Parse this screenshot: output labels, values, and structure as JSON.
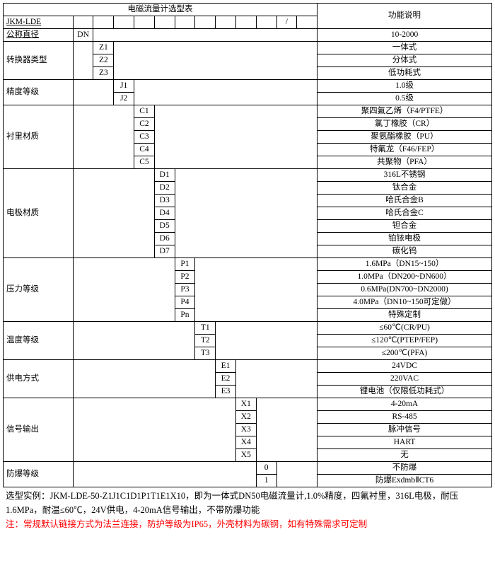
{
  "title": "电磁流量计选型表",
  "func_header": "功能说明",
  "model_label": "JKM-LDE",
  "slash": "/",
  "params": [
    {
      "label": "公称直径",
      "codes": [
        "DN"
      ],
      "indent": 0,
      "descs": [
        "10-2000"
      ]
    },
    {
      "label": "转换器类型",
      "codes": [
        "Z1",
        "Z2",
        "Z3"
      ],
      "indent": 1,
      "descs": [
        "一体式",
        "分体式",
        "低功耗式"
      ]
    },
    {
      "label": "精度等级",
      "codes": [
        "J1",
        "J2"
      ],
      "indent": 2,
      "descs": [
        "1.0级",
        "0.5级"
      ]
    },
    {
      "label": "衬里材质",
      "codes": [
        "C1",
        "C2",
        "C3",
        "C4",
        "C5"
      ],
      "indent": 3,
      "descs": [
        "聚四氟乙烯（F4/PTFE）",
        "氯丁橡胶（CR）",
        "聚氨酯橡胶（PU）",
        "特氟龙（F46/FEP）",
        "共聚物（PFA）"
      ]
    },
    {
      "label": "电极材质",
      "codes": [
        "D1",
        "D2",
        "D3",
        "D4",
        "D5",
        "D6",
        "D7"
      ],
      "indent": 4,
      "descs": [
        "316L不锈钢",
        "钛合金",
        "哈氏合金B",
        "哈氏合金C",
        "钽合金",
        "铂铱电极",
        "碳化钨"
      ]
    },
    {
      "label": "压力等级",
      "codes": [
        "P1",
        "P2",
        "P3",
        "P4",
        "Pn"
      ],
      "indent": 5,
      "descs": [
        "1.6MPa（DN15~150）",
        "1.0MPa（DN200~DN600）",
        "0.6MPa(DN700~DN2000)",
        "4.0MPa（DN10~150可定做）",
        "特殊定制"
      ]
    },
    {
      "label": "温度等级",
      "codes": [
        "T1",
        "T2",
        "T3"
      ],
      "indent": 6,
      "descs": [
        "≤60℃(CR/PU)",
        "≤120℃(PTEP/FEP)",
        "≤200℃(PFA)"
      ]
    },
    {
      "label": "供电方式",
      "codes": [
        "E1",
        "E2",
        "E3"
      ],
      "indent": 7,
      "descs": [
        "24VDC",
        "220VAC",
        "锂电池（仅限低功耗式）"
      ]
    },
    {
      "label": "信号输出",
      "codes": [
        "X1",
        "X2",
        "X3",
        "X4",
        "X5"
      ],
      "indent": 8,
      "descs": [
        "4-20mA",
        "RS-485",
        "脉冲信号",
        "HART",
        "无"
      ]
    },
    {
      "label": "防爆等级",
      "codes": [
        "0",
        "1"
      ],
      "indent": 9,
      "descs": [
        "不防爆",
        "防爆ExdmbⅡCT6"
      ]
    }
  ],
  "example_prefix": "选型实例：",
  "example_text": "JKM-LDE-50-Z1J1C1D1P1T1E1X10，即为一体式DN50电磁流量计,1.0%精度，四氟衬里，316L电极，耐压1.6MPa，耐温≤60℃，24V供电，4-20mA信号输出，不带防爆功能",
  "note_prefix": "注：",
  "note_text": "常规默认链接方式为法兰连接，防护等级为IP65，外壳材料为碳钢，如有特殊需求可定制",
  "border_color": "#000000",
  "red_color": "#ff0000"
}
